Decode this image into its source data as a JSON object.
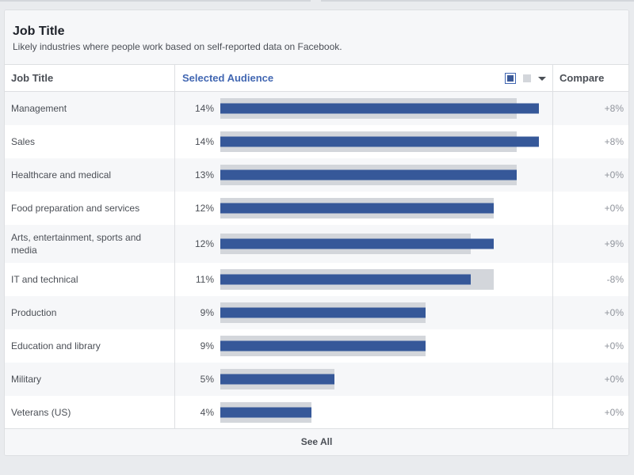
{
  "card": {
    "title": "Job Title",
    "subtitle": "Likely industries where people work based on self-reported data on Facebook."
  },
  "table": {
    "headers": {
      "job_title": "Job Title",
      "selected_audience": "Selected Audience",
      "compare": "Compare"
    },
    "view_controls": {
      "active_icon": "square-filled-icon",
      "inactive_icon": "square-outline-icon",
      "dropdown_icon": "chevron-down-icon"
    },
    "rows": [
      {
        "label": "Management",
        "percent": "14%",
        "selected_fraction": 0.14,
        "baseline_fraction": 0.13,
        "compare": "+8%"
      },
      {
        "label": "Sales",
        "percent": "14%",
        "selected_fraction": 0.14,
        "baseline_fraction": 0.13,
        "compare": "+8%"
      },
      {
        "label": "Healthcare and medical",
        "percent": "13%",
        "selected_fraction": 0.13,
        "baseline_fraction": 0.13,
        "compare": "+0%"
      },
      {
        "label": "Food preparation and services",
        "percent": "12%",
        "selected_fraction": 0.12,
        "baseline_fraction": 0.12,
        "compare": "+0%"
      },
      {
        "label": "Arts, entertainment, sports and media",
        "percent": "12%",
        "selected_fraction": 0.12,
        "baseline_fraction": 0.11,
        "compare": "+9%"
      },
      {
        "label": "IT and technical",
        "percent": "11%",
        "selected_fraction": 0.11,
        "baseline_fraction": 0.12,
        "compare": "-8%"
      },
      {
        "label": "Production",
        "percent": "9%",
        "selected_fraction": 0.09,
        "baseline_fraction": 0.09,
        "compare": "+0%"
      },
      {
        "label": "Education and library",
        "percent": "9%",
        "selected_fraction": 0.09,
        "baseline_fraction": 0.09,
        "compare": "+0%"
      },
      {
        "label": "Military",
        "percent": "5%",
        "selected_fraction": 0.05,
        "baseline_fraction": 0.05,
        "compare": "+0%"
      },
      {
        "label": "Veterans (US)",
        "percent": "4%",
        "selected_fraction": 0.04,
        "baseline_fraction": 0.04,
        "compare": "+0%"
      }
    ],
    "scale_max_fraction": 0.143
  },
  "footer": {
    "see_all_label": "See All"
  },
  "colors": {
    "selected_bar": "#365899",
    "baseline_bar": "#d3d6db",
    "accent": "#4267b2"
  }
}
